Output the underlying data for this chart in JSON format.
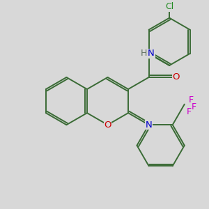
{
  "background_color": "#d8d8d8",
  "bond_color": "#3a6b35",
  "atom_colors": {
    "O": "#cc0000",
    "N": "#0000cc",
    "H": "#607060",
    "Cl": "#228b22",
    "F": "#cc00cc"
  },
  "lw": 1.4,
  "dbl_off": 0.08,
  "figsize": [
    3.0,
    3.0
  ],
  "dpi": 100
}
